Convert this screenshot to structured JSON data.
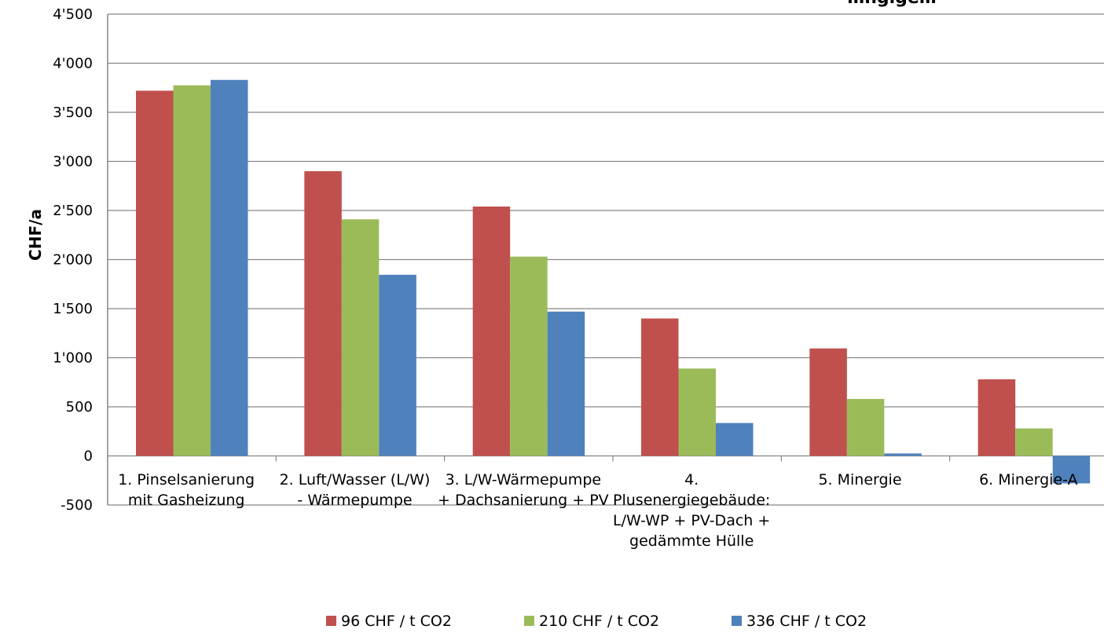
{
  "chart_data": {
    "type": "bar",
    "title": "…ngige…",
    "xlabel": "",
    "ylabel": "CHF/a",
    "ylim": [
      -500,
      4500
    ],
    "ytick_step": 500,
    "ytick_labels": [
      "-500",
      "0",
      "500",
      "1'000",
      "1'500",
      "2'000",
      "2'500",
      "3'000",
      "3'500",
      "4'000",
      "4'500"
    ],
    "grid": true,
    "legend_position": "bottom",
    "categories": [
      [
        "1. Pinselsanierung",
        "mit Gasheizung"
      ],
      [
        "2. Luft/Wasser (L/W)",
        "- Wärmepumpe"
      ],
      [
        "3. L/W-Wärmepumpe",
        "+ Dachsanierung + PV"
      ],
      [
        "4.",
        "Plusenergiegebäude:",
        "L/W-WP + PV-Dach +",
        "gedämmte Hülle"
      ],
      [
        "5. Minergie"
      ],
      [
        "6. Minergie-A"
      ]
    ],
    "series": [
      {
        "name": "96 CHF / t CO2",
        "color": "#c0504d",
        "values": [
          3720,
          2900,
          2540,
          1400,
          1095,
          780
        ]
      },
      {
        "name": "210 CHF / t CO2",
        "color": "#9bbb59",
        "values": [
          3775,
          2410,
          2030,
          890,
          580,
          280
        ]
      },
      {
        "name": "336 CHF / t CO2",
        "color": "#4f81bd",
        "values": [
          3830,
          1845,
          1470,
          335,
          25,
          -280
        ]
      }
    ]
  }
}
